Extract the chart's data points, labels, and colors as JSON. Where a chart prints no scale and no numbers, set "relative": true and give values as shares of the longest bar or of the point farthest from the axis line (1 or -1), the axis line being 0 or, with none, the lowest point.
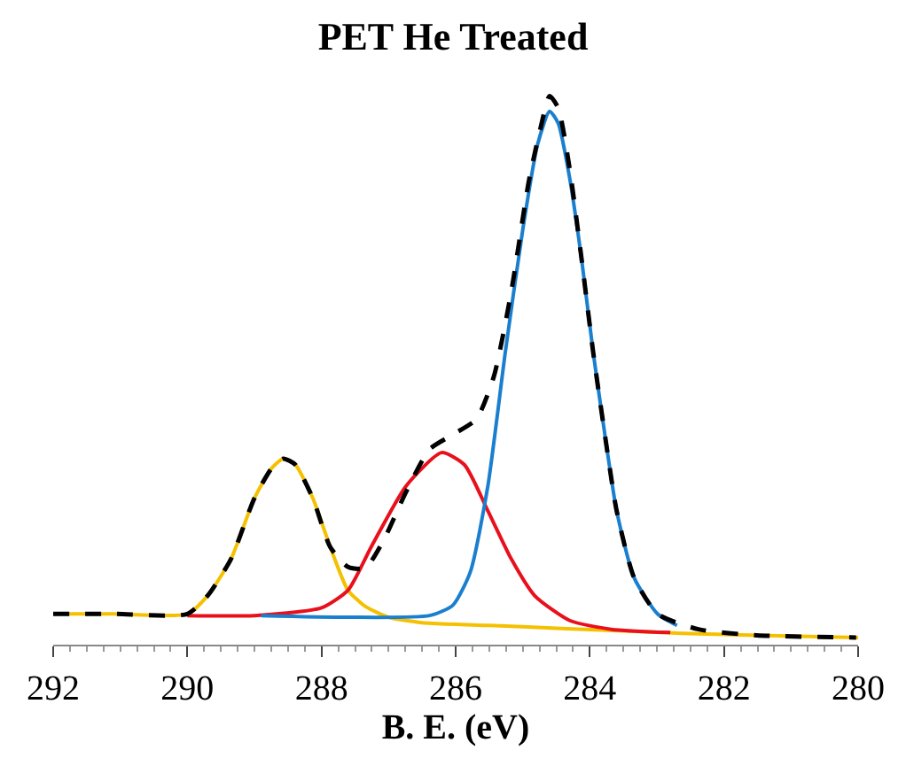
{
  "chart_data": {
    "type": "line",
    "title": "PET He Treated",
    "xlabel": "B. E. (eV)",
    "relative": true,
    "xlim": [
      292,
      280
    ],
    "xticks": [
      292,
      290,
      288,
      286,
      284,
      282,
      280
    ],
    "marker": "none",
    "series": [
      {
        "color": "#f5c000",
        "line_style": "solid",
        "x": [
          292.0,
          291.1,
          290.0,
          289.7,
          289.35,
          289.0,
          288.74,
          288.57,
          288.39,
          288.13,
          287.87,
          287.61,
          287.35,
          287.0,
          286.5,
          285.5,
          284.5,
          283.5,
          282.5,
          281.5,
          280.0
        ],
        "values": [
          0.056,
          0.056,
          0.056,
          0.089,
          0.156,
          0.267,
          0.322,
          0.339,
          0.328,
          0.267,
          0.178,
          0.1,
          0.07,
          0.05,
          0.04,
          0.035,
          0.03,
          0.025,
          0.02,
          0.017,
          0.013
        ]
      },
      {
        "color": "#e8101c",
        "line_style": "solid",
        "x": [
          290.0,
          289.0,
          288.0,
          287.6,
          287.26,
          286.74,
          286.21,
          285.87,
          285.52,
          285.17,
          284.82,
          284.3,
          283.68,
          282.8
        ],
        "values": [
          0.053,
          0.053,
          0.067,
          0.1,
          0.178,
          0.289,
          0.35,
          0.328,
          0.244,
          0.156,
          0.089,
          0.044,
          0.028,
          0.022
        ]
      },
      {
        "color": "#1a7fcf",
        "line_style": "solid",
        "x": [
          288.9,
          287.61,
          286.39,
          286.04,
          285.78,
          285.52,
          285.26,
          285.0,
          284.78,
          284.6,
          284.47,
          284.3,
          284.12,
          283.95,
          283.77,
          283.6,
          283.34,
          282.99,
          282.7
        ],
        "values": [
          0.053,
          0.05,
          0.053,
          0.072,
          0.133,
          0.289,
          0.533,
          0.756,
          0.911,
          0.972,
          0.95,
          0.85,
          0.7,
          0.533,
          0.378,
          0.244,
          0.122,
          0.056,
          0.035
        ]
      },
      {
        "color": "#000000",
        "line_style": "dashed",
        "x": [
          292.0,
          291.1,
          290.0,
          289.7,
          289.35,
          289.0,
          288.74,
          288.57,
          288.39,
          288.13,
          287.87,
          287.61,
          287.35,
          287.08,
          286.74,
          286.39,
          286.04,
          285.69,
          285.43,
          285.17,
          284.91,
          284.73,
          284.6,
          284.47,
          284.3,
          284.12,
          283.95,
          283.77,
          283.6,
          283.34,
          282.99,
          282.38,
          281.51,
          280.03
        ],
        "values": [
          0.056,
          0.056,
          0.056,
          0.089,
          0.156,
          0.267,
          0.322,
          0.339,
          0.328,
          0.267,
          0.178,
          0.142,
          0.139,
          0.189,
          0.278,
          0.356,
          0.383,
          0.411,
          0.489,
          0.644,
          0.844,
          0.944,
          1.0,
          0.978,
          0.867,
          0.7,
          0.533,
          0.378,
          0.244,
          0.122,
          0.056,
          0.028,
          0.017,
          0.013
        ]
      }
    ]
  }
}
